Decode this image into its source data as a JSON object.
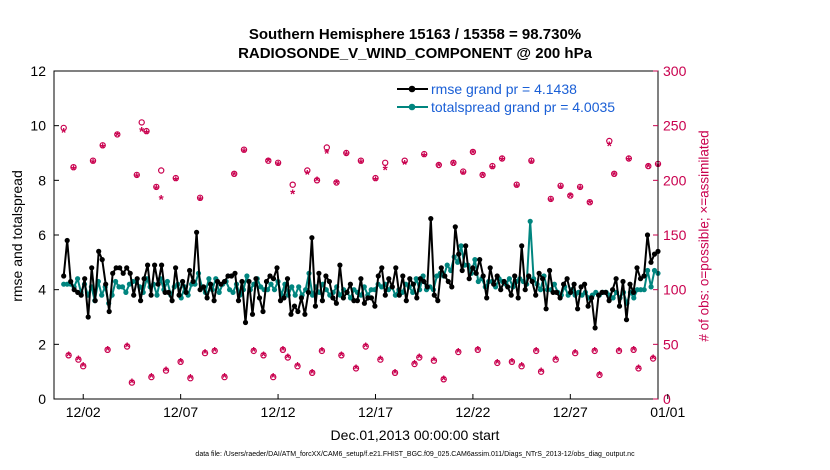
{
  "chart_data": {
    "type": "line",
    "title": "Southern Hemisphere 15163 / 15358 = 98.730%",
    "subtitle": "RADIOSONDE_V_WIND_COMPONENT @ 200 hPa",
    "xlabel": "Dec.01,2013 00:00:00 start",
    "ylabel": "rmse and totalspread",
    "y2label": "# of obs: o=possible; ×=assimilated",
    "footer": "data file: /Users/raeder/DAI/ATM_forcXX/CAM6_setup/f.e21.FHIST_BGC.f09_025.CAM6assim.011/Diags_NTrS_2013-12/obs_diag_output.nc",
    "xlim": [
      0.5,
      31.5
    ],
    "ylim": [
      0,
      12
    ],
    "y2lim": [
      0,
      300
    ],
    "xticks": [
      {
        "x": 2,
        "label": "12/02"
      },
      {
        "x": 7,
        "label": "12/07"
      },
      {
        "x": 12,
        "label": "12/12"
      },
      {
        "x": 17,
        "label": "12/17"
      },
      {
        "x": 22,
        "label": "12/22"
      },
      {
        "x": 27,
        "label": "12/27"
      },
      {
        "x": 32,
        "label": "01/01"
      }
    ],
    "yticks": [
      "0",
      "2",
      "4",
      "6",
      "8",
      "10",
      "12"
    ],
    "y2ticks": [
      "0",
      "50",
      "100",
      "150",
      "200",
      "250",
      "300"
    ],
    "colors": {
      "rmse": "#000000",
      "spread": "#00857f",
      "obs": "#c9004e",
      "legend_text": "#1a5fd6"
    },
    "series": [
      {
        "name": "rmse grand pr = 4.1438",
        "color": "#000000",
        "values": [
          4.5,
          5.8,
          4.3,
          4.0,
          3.9,
          3.8,
          4.4,
          3.0,
          4.8,
          3.6,
          5.4,
          5.1,
          4.2,
          3.2,
          4.6,
          4.8,
          4.8,
          4.6,
          4.8,
          4.6,
          3.8,
          4.4,
          3.6,
          4.4,
          4.9,
          3.8,
          4.9,
          4.2,
          4.9,
          3.9,
          3.9,
          3.6,
          4.8,
          3.8,
          4.3,
          3.9,
          4.7,
          4.3,
          6.1,
          4.0,
          4.1,
          3.7,
          4.2,
          3.6,
          4.3,
          4.2,
          4.3,
          4.5,
          4.5,
          4.6,
          3.6,
          4.3,
          2.8,
          4.3,
          3.1,
          4.4,
          3.7,
          3.2,
          4.3,
          4.5,
          4.4,
          4.8,
          3.6,
          3.7,
          4.4,
          3.1,
          3.4,
          3.2,
          3.7,
          3.1,
          3.9,
          5.9,
          3.4,
          4.6,
          3.6,
          4.5,
          4.3,
          3.7,
          3.5,
          4.9,
          3.7,
          3.9,
          4.2,
          3.6,
          3.6,
          4.4,
          3.5,
          3.7,
          3.7,
          3.4,
          4.5,
          4.8,
          3.8,
          4.4,
          4.1,
          4.8,
          3.8,
          4.5,
          3.6,
          4.4,
          4.2,
          3.7,
          4.4,
          4.3,
          4.1,
          6.6,
          3.8,
          3.6,
          4.8,
          4.5,
          4.3,
          4.1,
          6.3,
          5.3,
          4.7,
          5.6,
          4.4,
          4.8,
          4.6,
          5.1,
          4.5,
          3.7,
          4.8,
          4.2,
          4.5,
          4.0,
          4.3,
          4.1,
          3.8,
          4.5,
          3.7,
          5.6,
          4.0,
          4.5,
          4.3,
          3.8,
          4.6,
          4.4,
          3.3,
          4.7,
          3.9,
          3.9,
          3.7,
          4.2,
          4.4,
          3.9,
          4.2,
          3.3,
          4.1,
          4.2,
          3.4,
          3.7,
          2.6,
          3.8,
          3.9,
          3.9,
          3.6,
          4.0,
          4.4,
          3.4,
          4.3,
          2.9,
          4.2,
          3.9,
          4.8,
          4.4,
          4.5,
          6.0,
          5.0,
          5.3,
          5.4
        ]
      },
      {
        "name": "totalspread grand pr = 4.0035",
        "color": "#00857f",
        "values": [
          4.2,
          4.2,
          4.2,
          4.1,
          4.4,
          3.9,
          4.2,
          3.8,
          4.1,
          3.6,
          4.3,
          3.8,
          4.1,
          3.5,
          3.8,
          4.3,
          4.1,
          4.1,
          3.9,
          4.2,
          4.3,
          4.3,
          4.1,
          3.9,
          4.4,
          4.1,
          4.2,
          3.8,
          4.4,
          4.0,
          4.3,
          3.8,
          4.1,
          4.2,
          3.7,
          4.1,
          3.8,
          4.2,
          4.2,
          4.6,
          4.1,
          3.9,
          4.4,
          4.0,
          4.4,
          3.9,
          4.2,
          4.3,
          4.0,
          3.9,
          4.2,
          3.8,
          4.0,
          4.5,
          4.0,
          4.2,
          4.4,
          4.1,
          4.0,
          4.0,
          4.2,
          4.0,
          4.3,
          3.8,
          4.2,
          3.8,
          4.1,
          3.8,
          4.1,
          3.8,
          4.0,
          4.6,
          3.8,
          4.1,
          3.9,
          4.2,
          4.0,
          3.8,
          3.9,
          4.1,
          3.8,
          4.0,
          3.9,
          3.7,
          4.0,
          3.9,
          3.8,
          4.1,
          3.8,
          4.0,
          4.0,
          4.2,
          4.1,
          4.2,
          4.0,
          4.1,
          3.8,
          4.0,
          3.9,
          4.2,
          4.1,
          3.9,
          4.4,
          4.0,
          4.5,
          4.0,
          4.1,
          4.0,
          4.5,
          4.6,
          4.5,
          4.9,
          4.7,
          5.2,
          5.0,
          5.6,
          4.9,
          4.9,
          4.6,
          5.1,
          4.3,
          4.4,
          4.1,
          4.3,
          4.3,
          4.1,
          4.4,
          4.3,
          4.2,
          4.4,
          4.1,
          4.3,
          4.4,
          4.3,
          4.2,
          6.5,
          4.4,
          4.2,
          4.0,
          4.5,
          4.0,
          4.0,
          4.2,
          3.9,
          3.8,
          4.1,
          3.8,
          4.0,
          3.8,
          3.9,
          3.8,
          3.9,
          3.7,
          3.8,
          3.9,
          3.8,
          3.9,
          3.9,
          3.8,
          3.7,
          3.9,
          3.7,
          3.9,
          3.5,
          3.9,
          3.7,
          4.0,
          4.0,
          4.0,
          4.7,
          4.1,
          4.7,
          4.6
        ]
      },
      {
        "name": "obs_possible",
        "x": [
          1.0,
          1.25,
          1.5,
          1.75,
          2.0,
          2.5,
          3.0,
          3.25,
          3.75,
          4.25,
          4.5,
          4.75,
          5.0,
          5.25,
          5.5,
          5.75,
          6.0,
          6.25,
          6.75,
          7.0,
          7.5,
          8.0,
          8.25,
          8.75,
          9.25,
          9.75,
          10.25,
          10.75,
          11.25,
          11.5,
          11.75,
          12.0,
          12.25,
          12.5,
          12.75,
          13.0,
          13.5,
          13.75,
          14.0,
          14.25,
          14.5,
          15.0,
          15.25,
          15.5,
          16.0,
          16.25,
          16.5,
          17.0,
          17.25,
          17.5,
          18.0,
          18.5,
          19.0,
          19.25,
          19.5,
          20.0,
          20.25,
          20.5,
          21.0,
          21.25,
          21.5,
          22.0,
          22.25,
          22.5,
          23.0,
          23.25,
          23.5,
          24.0,
          24.25,
          24.5,
          25.0,
          25.25,
          25.5,
          26.0,
          26.25,
          26.5,
          27.0,
          27.25,
          27.5,
          28.0,
          28.25,
          28.5,
          29.0,
          29.25,
          29.5,
          30.0,
          30.25,
          30.5,
          31.0,
          31.25,
          31.5
        ],
        "values": [
          248,
          40,
          212,
          36,
          30,
          218,
          232,
          45,
          242,
          48,
          15,
          205,
          253,
          245,
          20,
          194,
          209,
          26,
          202,
          34,
          19,
          184,
          42,
          44,
          20,
          206,
          228,
          44,
          40,
          218,
          20,
          216,
          45,
          38,
          196,
          30,
          209,
          24,
          200,
          44,
          230,
          198,
          40,
          225,
          28,
          218,
          48,
          202,
          36,
          216,
          24,
          218,
          32,
          38,
          224,
          35,
          214,
          18,
          216,
          43,
          208,
          226,
          45,
          205,
          213,
          33,
          220,
          34,
          196,
          30,
          218,
          44,
          25,
          183,
          36,
          195,
          186,
          42,
          194,
          180,
          44,
          22,
          236,
          206,
          44,
          220,
          45,
          28,
          213,
          37,
          215
        ]
      },
      {
        "name": "obs_assimilated",
        "x": [
          1.0,
          1.25,
          1.5,
          1.75,
          2.0,
          2.5,
          3.0,
          3.25,
          3.75,
          4.25,
          4.5,
          4.75,
          5.0,
          5.25,
          5.5,
          5.75,
          6.0,
          6.25,
          6.75,
          7.0,
          7.5,
          8.0,
          8.25,
          8.75,
          9.25,
          9.75,
          10.25,
          10.75,
          11.25,
          11.5,
          11.75,
          12.0,
          12.25,
          12.5,
          12.75,
          13.0,
          13.5,
          13.75,
          14.0,
          14.25,
          14.5,
          15.0,
          15.25,
          15.5,
          16.0,
          16.25,
          16.5,
          17.0,
          17.25,
          17.5,
          18.0,
          18.5,
          19.0,
          19.25,
          19.5,
          20.0,
          20.25,
          20.5,
          21.0,
          21.25,
          21.5,
          22.0,
          22.25,
          22.5,
          23.0,
          23.25,
          23.5,
          24.0,
          24.25,
          24.5,
          25.0,
          25.25,
          25.5,
          26.0,
          26.25,
          26.5,
          27.0,
          27.25,
          27.5,
          28.0,
          28.25,
          28.5,
          29.0,
          29.25,
          29.5,
          30.0,
          30.25,
          30.5,
          31.0,
          31.25,
          31.5
        ],
        "values": [
          244,
          40,
          210,
          36,
          30,
          216,
          230,
          45,
          241,
          48,
          15,
          203,
          245,
          243,
          20,
          192,
          183,
          26,
          200,
          34,
          19,
          182,
          42,
          44,
          20,
          205,
          226,
          44,
          40,
          217,
          20,
          214,
          45,
          38,
          188,
          30,
          206,
          24,
          200,
          44,
          225,
          197,
          40,
          223,
          28,
          216,
          48,
          200,
          36,
          210,
          24,
          215,
          32,
          38,
          222,
          35,
          213,
          18,
          215,
          43,
          206,
          225,
          45,
          204,
          211,
          33,
          218,
          34,
          194,
          30,
          216,
          44,
          25,
          181,
          36,
          193,
          185,
          42,
          192,
          179,
          44,
          22,
          232,
          205,
          44,
          218,
          45,
          28,
          212,
          37,
          213
        ]
      }
    ]
  }
}
